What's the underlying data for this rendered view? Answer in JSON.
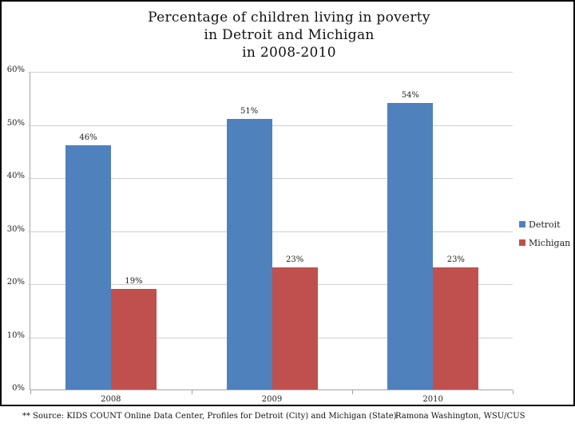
{
  "title": {
    "lines": [
      "Percentage of children living in poverty",
      "in Detroit and Michigan",
      "in 2008-2010"
    ]
  },
  "chart_data": {
    "type": "bar",
    "categories": [
      "2008",
      "2009",
      "2010"
    ],
    "series": [
      {
        "name": "Detroit",
        "color": "#4F81BD",
        "values": [
          46,
          51,
          54
        ]
      },
      {
        "name": "Michigan",
        "color": "#C0504D",
        "values": [
          19,
          23,
          23
        ]
      }
    ],
    "data_labels": [
      [
        "46%",
        "51%",
        "54%"
      ],
      [
        "19%",
        "23%",
        "23%"
      ]
    ],
    "value_suffix": "%",
    "ylim": [
      0,
      60
    ],
    "ytick_step": 10,
    "y_tick_labels": [
      "0%",
      "10%",
      "20%",
      "30%",
      "40%",
      "50%",
      "60%"
    ],
    "grid": true,
    "legend_position": "right",
    "xlabel": "",
    "ylabel": ""
  },
  "footer": {
    "source": "** Source: KIDS COUNT Online Data Center, Profiles for Detroit (City) and Michigan (State)",
    "credit": "Ramona Washington, WSU/CUS"
  },
  "colors": {
    "detroit": "#4F81BD",
    "michigan": "#C0504D",
    "gridline": "#cfcfcf",
    "axis": "#a3a3a3",
    "frame_border": "#000000"
  }
}
